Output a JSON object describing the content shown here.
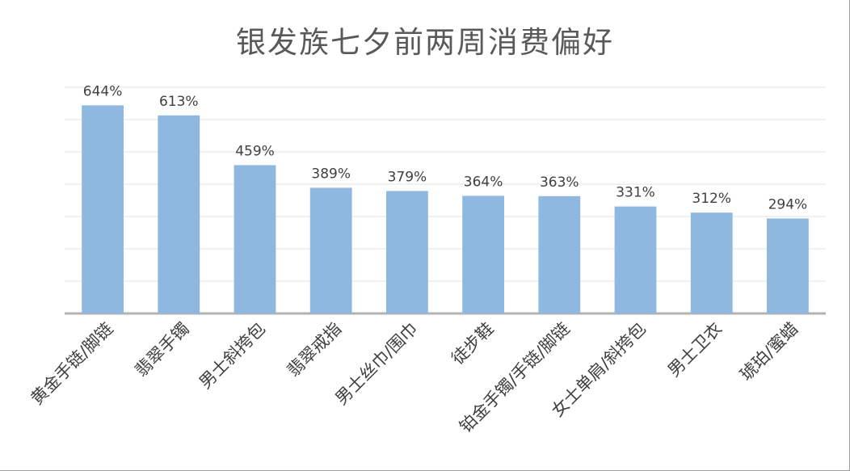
{
  "chart_data": {
    "type": "bar",
    "title": "银发族七夕前两周消费偏好",
    "categories": [
      "黄金手链/脚链",
      "翡翠手镯",
      "男士斜挎包",
      "翡翠戒指",
      "男士丝巾/围巾",
      "徒步鞋",
      "铂金手镯/手链/脚链",
      "女士单肩/斜挎包",
      "男士卫衣",
      "琥珀/蜜蜡"
    ],
    "values": [
      644,
      613,
      459,
      389,
      379,
      364,
      363,
      331,
      312,
      294
    ],
    "data_labels": [
      "644%",
      "613%",
      "459%",
      "389%",
      "379%",
      "364%",
      "363%",
      "331%",
      "312%",
      "294%"
    ],
    "unit": "%",
    "ylim": [
      0,
      700
    ],
    "grid": true,
    "y_axis_labels_visible": false,
    "legend": "none",
    "bar_color": "#8fb8e0"
  }
}
